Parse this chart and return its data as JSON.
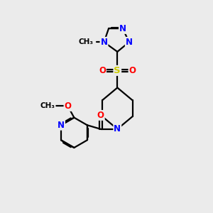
{
  "background_color": "#ebebeb",
  "bond_color": "#000000",
  "atom_colors": {
    "N": "#0000ff",
    "O": "#ff0000",
    "S": "#cccc00",
    "C": "#000000"
  },
  "figsize": [
    3.0,
    3.0
  ],
  "dpi": 100,
  "xlim": [
    0,
    10
  ],
  "ylim": [
    0,
    10
  ]
}
